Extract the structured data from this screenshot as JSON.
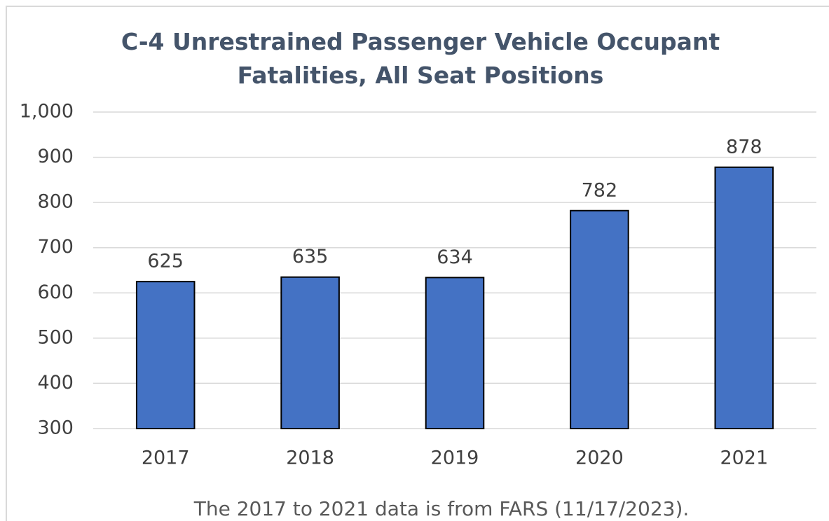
{
  "chart_data": {
    "type": "bar",
    "title": "C-4 Unrestrained Passenger Vehicle Occupant Fatalities, All Seat Positions",
    "categories": [
      "2017",
      "2018",
      "2019",
      "2020",
      "2021"
    ],
    "values": [
      625,
      635,
      634,
      782,
      878
    ],
    "color": "#4472c4",
    "ylim": [
      300,
      1000
    ],
    "yticks": [
      300,
      400,
      500,
      600,
      700,
      800,
      900,
      {
        "value": 1000,
        "label": "1,000"
      }
    ],
    "grid": true,
    "caption": "The 2017 to 2021 data is from FARS (11/17/2023)."
  }
}
